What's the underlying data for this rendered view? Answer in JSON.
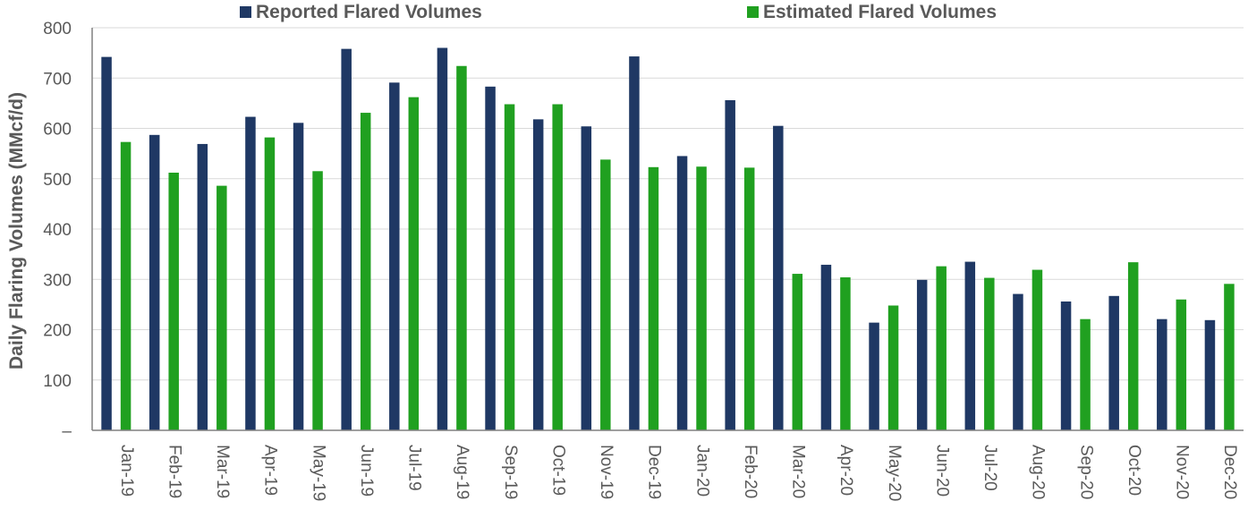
{
  "chart_data": {
    "type": "bar",
    "title": "",
    "xlabel": "",
    "ylabel": "Daily Flaring Volumes (MMcf/d)",
    "ylim": [
      0,
      800
    ],
    "yticks": [
      "–",
      "100",
      "200",
      "300",
      "400",
      "500",
      "600",
      "700",
      "800"
    ],
    "grid": true,
    "legend_position": "top",
    "categories": [
      "Jan-19",
      "Feb-19",
      "Mar-19",
      "Apr-19",
      "May-19",
      "Jun-19",
      "Jul-19",
      "Aug-19",
      "Sep-19",
      "Oct-19",
      "Nov-19",
      "Dec-19",
      "Jan-20",
      "Feb-20",
      "Mar-20",
      "Apr-20",
      "May-20",
      "Jun-20",
      "Jul-20",
      "Aug-20",
      "Sep-20",
      "Oct-20",
      "Nov-20",
      "Dec-20"
    ],
    "series": [
      {
        "name": "Reported Flared Volumes",
        "color": "#1f3864",
        "values": [
          742,
          587,
          569,
          623,
          611,
          758,
          691,
          760,
          683,
          618,
          604,
          743,
          545,
          656,
          605,
          329,
          214,
          299,
          335,
          271,
          256,
          267,
          221,
          219
        ]
      },
      {
        "name": "Estimated Flared Volumes",
        "color": "#20a020",
        "values": [
          573,
          512,
          486,
          582,
          515,
          631,
          662,
          724,
          648,
          648,
          538,
          523,
          524,
          522,
          311,
          304,
          248,
          326,
          303,
          319,
          221,
          334,
          260,
          291
        ]
      }
    ]
  }
}
